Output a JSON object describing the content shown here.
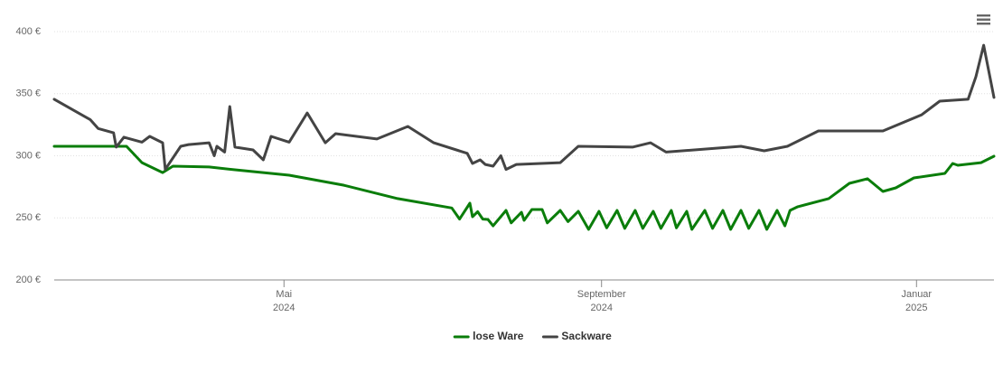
{
  "chart_data": {
    "type": "line",
    "ylim": [
      200,
      400
    ],
    "yticks": [
      {
        "value": 200,
        "label": "200 €"
      },
      {
        "value": 250,
        "label": "250 €"
      },
      {
        "value": 300,
        "label": "300 €"
      },
      {
        "value": 350,
        "label": "350 €"
      },
      {
        "value": 400,
        "label": "400 €"
      }
    ],
    "xlim": [
      "2024-02-02",
      "2025-01-31"
    ],
    "xticks": [
      {
        "value": "2024-05-01",
        "label": [
          "Mai",
          "2024"
        ]
      },
      {
        "value": "2024-09-01",
        "label": [
          "September",
          "2024"
        ]
      },
      {
        "value": "2025-01-01",
        "label": [
          "Januar",
          "2025"
        ]
      }
    ],
    "grid": true,
    "legend": "bottom",
    "series": [
      {
        "name": "lose Ware",
        "color": "#0a7d0a",
        "x": [
          "2024-02-02",
          "2024-03-01",
          "2024-03-07",
          "2024-03-15",
          "2024-03-19",
          "2024-04-02",
          "2024-04-12",
          "2024-05-03",
          "2024-05-24",
          "2024-06-14",
          "2024-07-05",
          "2024-07-08",
          "2024-07-12",
          "2024-07-13",
          "2024-07-15",
          "2024-07-17",
          "2024-07-19",
          "2024-07-21",
          "2024-07-26",
          "2024-07-28",
          "2024-08-01",
          "2024-08-02",
          "2024-08-05",
          "2024-08-09",
          "2024-08-11",
          "2024-08-16",
          "2024-08-19",
          "2024-08-23",
          "2024-08-27",
          "2024-08-31",
          "2024-09-03",
          "2024-09-07",
          "2024-09-10",
          "2024-09-14",
          "2024-09-17",
          "2024-09-21",
          "2024-09-24",
          "2024-09-28",
          "2024-09-30",
          "2024-10-04",
          "2024-10-06",
          "2024-10-11",
          "2024-10-14",
          "2024-10-18",
          "2024-10-21",
          "2024-10-25",
          "2024-10-28",
          "2024-11-01",
          "2024-11-04",
          "2024-11-08",
          "2024-11-11",
          "2024-11-13",
          "2024-11-16",
          "2024-11-28",
          "2024-12-06",
          "2024-12-13",
          "2024-12-19",
          "2024-12-24",
          "2024-12-31",
          "2025-01-12",
          "2025-01-15",
          "2025-01-17",
          "2025-01-26",
          "2025-01-31"
        ],
        "values": [
          307.6,
          307.6,
          294.5,
          286.5,
          291.6,
          291,
          288.7,
          284.4,
          276.4,
          265.5,
          258,
          249,
          261.8,
          250.9,
          255,
          249,
          248.7,
          243.6,
          256,
          246,
          254.5,
          248,
          256.7,
          256.7,
          246,
          256,
          247,
          255.3,
          240.7,
          255.3,
          242,
          256,
          241.5,
          256,
          241.5,
          255.3,
          241.5,
          256,
          242,
          255.3,
          240.7,
          256,
          241.5,
          256,
          240.7,
          256,
          241.5,
          256,
          240.7,
          256,
          243.6,
          256,
          259,
          265.5,
          277.8,
          281.5,
          271.3,
          274.2,
          282.2,
          285.8,
          293.8,
          292.4,
          294.5,
          299.6
        ]
      },
      {
        "name": "Sackware",
        "color": "#444444",
        "x": [
          "2024-02-02",
          "2024-02-16",
          "2024-02-19",
          "2024-02-25",
          "2024-02-26",
          "2024-02-29",
          "2024-03-07",
          "2024-03-10",
          "2024-03-15",
          "2024-03-16",
          "2024-03-22",
          "2024-03-25",
          "2024-04-02",
          "2024-04-04",
          "2024-04-05",
          "2024-04-08",
          "2024-04-10",
          "2024-04-12",
          "2024-04-19",
          "2024-04-23",
          "2024-04-26",
          "2024-05-03",
          "2024-05-10",
          "2024-05-17",
          "2024-05-21",
          "2024-06-06",
          "2024-06-18",
          "2024-06-28",
          "2024-07-11",
          "2024-07-13",
          "2024-07-16",
          "2024-07-18",
          "2024-07-21",
          "2024-07-24",
          "2024-07-26",
          "2024-07-30",
          "2024-08-16",
          "2024-08-23",
          "2024-09-13",
          "2024-09-20",
          "2024-09-26",
          "2024-10-25",
          "2024-11-03",
          "2024-11-12",
          "2024-11-24",
          "2024-12-19",
          "2025-01-03",
          "2025-01-10",
          "2025-01-21",
          "2025-01-24",
          "2025-01-27",
          "2025-01-31"
        ],
        "values": [
          345.5,
          329,
          322,
          318.5,
          307,
          315,
          311,
          315.6,
          310.5,
          289,
          307.6,
          309,
          310.5,
          300,
          307.6,
          303,
          339.6,
          307,
          304.7,
          296.7,
          315.6,
          311,
          334.5,
          310.5,
          317.8,
          313.5,
          323.6,
          310.5,
          302,
          293.8,
          296.7,
          293,
          291.6,
          300,
          289,
          293,
          294.5,
          307.6,
          307,
          310.5,
          303,
          307.6,
          304,
          307.6,
          320,
          320,
          333,
          344,
          345.5,
          363.6,
          389,
          347
        ]
      }
    ]
  }
}
